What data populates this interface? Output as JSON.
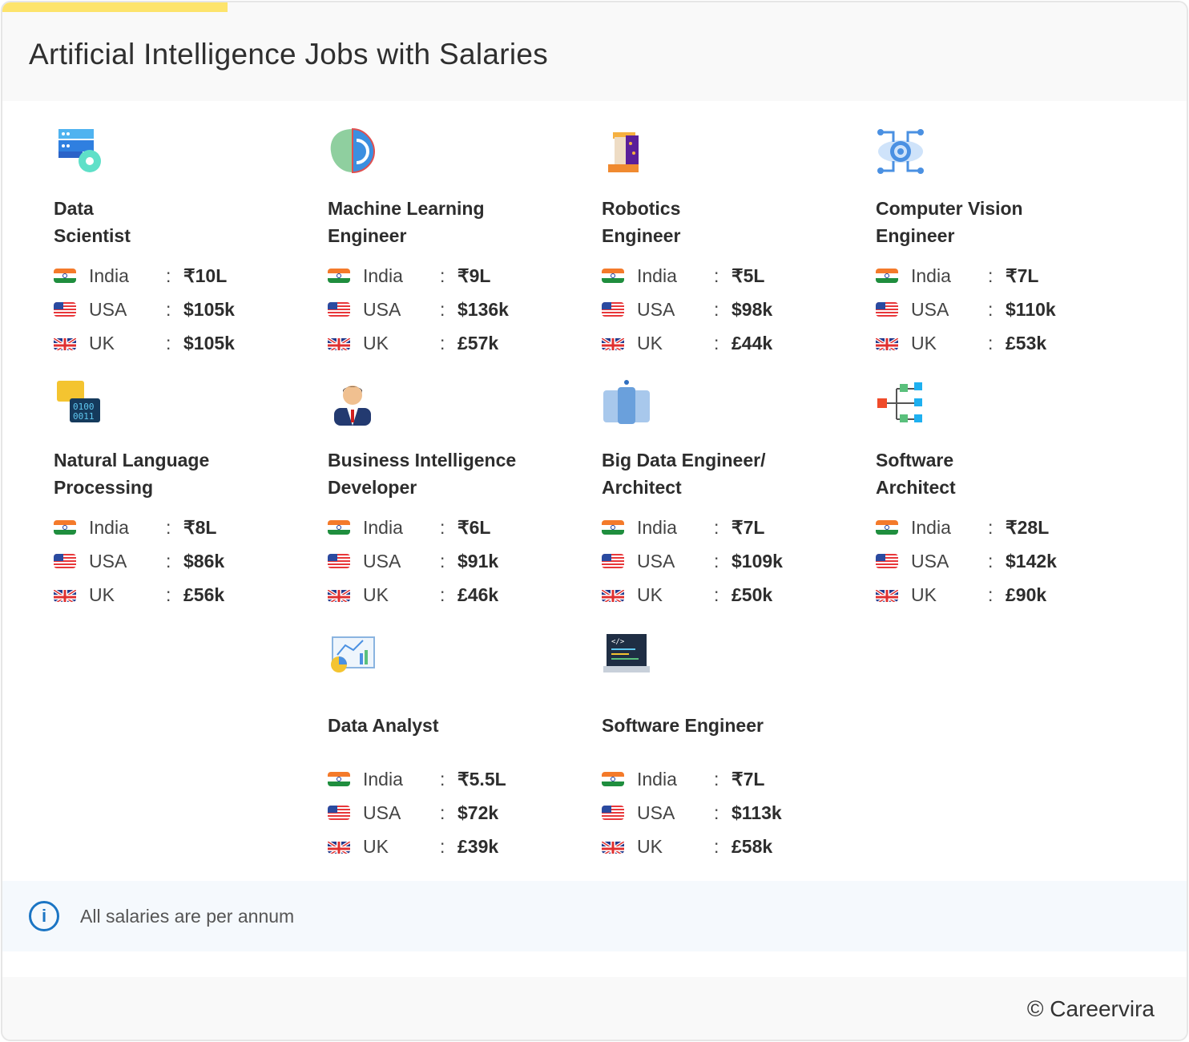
{
  "header": {
    "title": "Artificial Intelligence Jobs with Salaries"
  },
  "colors": {
    "accent_bar": "#fde46c",
    "info": "#1b75c4"
  },
  "countries": {
    "india": "India",
    "usa": "USA",
    "uk": "UK"
  },
  "separator": ":",
  "jobs": [
    {
      "title": "Data\nScientist",
      "icon": "server-gear-icon",
      "india": "₹10L",
      "usa": "$105k",
      "uk": "$105k"
    },
    {
      "title": "Machine Learning\nEngineer",
      "icon": "brain-gear-icon",
      "india": "₹9L",
      "usa": "$136k",
      "uk": "£57k"
    },
    {
      "title": "Robotics\nEngineer",
      "icon": "cyborg-face-icon",
      "india": "₹5L",
      "usa": "$98k",
      "uk": "£44k"
    },
    {
      "title": "Computer Vision\nEngineer",
      "icon": "eye-circuit-icon",
      "india": "₹7L",
      "usa": "$110k",
      "uk": "£53k"
    },
    {
      "title": "Natural Language\nProcessing",
      "icon": "speech-binary-icon",
      "india": "₹8L",
      "usa": "$86k",
      "uk": "£56k"
    },
    {
      "title": "Business Intelligence\nDeveloper",
      "icon": "businessman-icon",
      "india": "₹6L",
      "usa": "$91k",
      "uk": "£46k"
    },
    {
      "title": "Big Data Engineer/\nArchitect",
      "icon": "database-icon",
      "india": "₹7L",
      "usa": "$109k",
      "uk": "£50k"
    },
    {
      "title": "Software\nArchitect",
      "icon": "hierarchy-icon",
      "india": "₹28L",
      "usa": "$142k",
      "uk": "£90k"
    },
    {
      "title": "Data Analyst",
      "icon": "analytics-board-icon",
      "india": "₹5.5L",
      "usa": "$72k",
      "uk": "£39k"
    },
    {
      "title": "Software Engineer",
      "icon": "laptop-code-icon",
      "india": "₹7L",
      "usa": "$113k",
      "uk": "£58k"
    }
  ],
  "info": {
    "icon": "info-icon",
    "text": "All salaries are per annum"
  },
  "footer": {
    "copyright": "© Careervira"
  }
}
